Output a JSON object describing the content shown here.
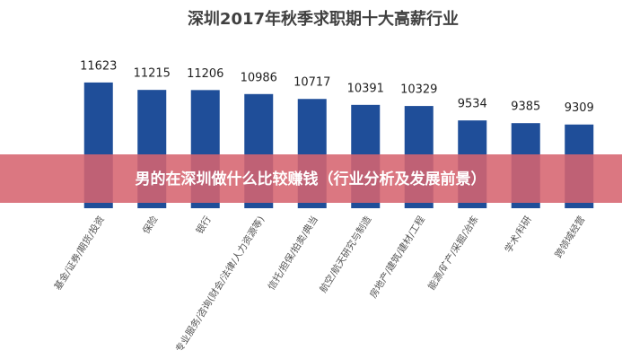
{
  "chart_data": {
    "type": "bar",
    "title": "深圳2017年秋季求职期十大高薪行业",
    "categories": [
      "基金/证券/期货/投资",
      "保险",
      "银行",
      "专业服务/咨询(财会/法律/人力资源等)",
      "信托/担保/拍卖/典当",
      "航空/航天研究与制造",
      "房地产/建筑/建材/工程",
      "能源/矿产/采掘/冶炼",
      "学术/科研",
      "跨领域经营"
    ],
    "values": [
      11623,
      11215,
      11206,
      10986,
      10717,
      10391,
      10329,
      9534,
      9385,
      9309
    ],
    "color": "#1f4e99",
    "ylim": [
      4700,
      13200
    ]
  },
  "banner": {
    "text": "男的在深圳做什么比较赚钱（行业分析及发展前景）"
  }
}
